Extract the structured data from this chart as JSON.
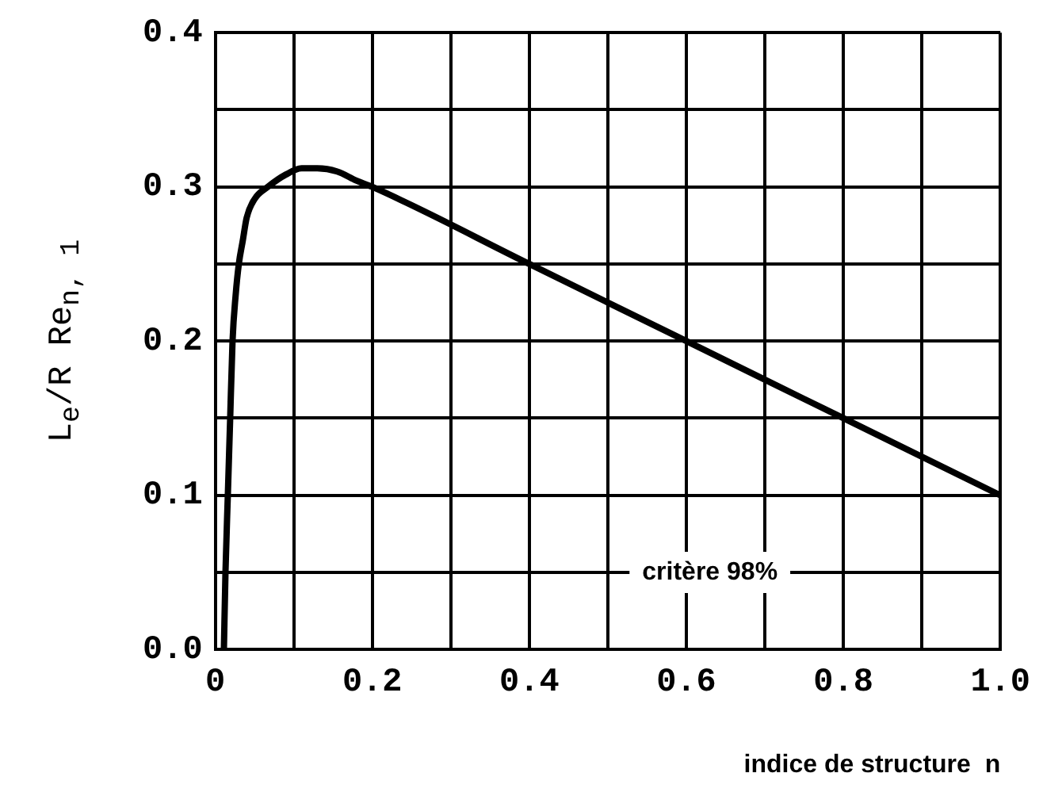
{
  "chart_data": {
    "type": "line",
    "xlabel": "indice de structure  n",
    "ylabel": "L$_{e}$/R Re$_{n, 1}$",
    "x": [
      0.011,
      0.013,
      0.016,
      0.019,
      0.022,
      0.026,
      0.03,
      0.035,
      0.04,
      0.05,
      0.067,
      0.09,
      0.11,
      0.13,
      0.155,
      0.18,
      0.2,
      0.4,
      0.6,
      0.8,
      1.0
    ],
    "series": [
      {
        "color": "#000000",
        "values": [
          0,
          0.05,
          0.1,
          0.15,
          0.2,
          0.23,
          0.25,
          0.265,
          0.28,
          0.292,
          0.3,
          0.308,
          0.312,
          0.312,
          0.31,
          0.304,
          0.3,
          0.25,
          0.2,
          0.15,
          0.1
        ]
      }
    ],
    "xlim": [
      0,
      1
    ],
    "ylim": [
      0,
      0.4
    ],
    "xticks": [
      0,
      {
        "value": 0.1,
        "label": null
      },
      0.2,
      {
        "value": 0.3,
        "label": null
      },
      0.4,
      {
        "value": 0.5,
        "label": null
      },
      0.6,
      {
        "value": 0.7,
        "label": null
      },
      0.8,
      {
        "value": 0.9,
        "label": null
      },
      {
        "value": 1,
        "label": "1.0"
      }
    ],
    "yticks": [
      {
        "value": 0,
        "label": "0.0"
      },
      {
        "value": 0.05,
        "label": null
      },
      0.1,
      {
        "value": 0.15,
        "label": null
      },
      0.2,
      {
        "value": 0.25,
        "label": null
      },
      0.3,
      {
        "value": 0.35,
        "label": null
      },
      0.4
    ],
    "grid": true,
    "marker": "none",
    "line_style": "solid",
    "annotations": [
      "critère 98%"
    ]
  }
}
